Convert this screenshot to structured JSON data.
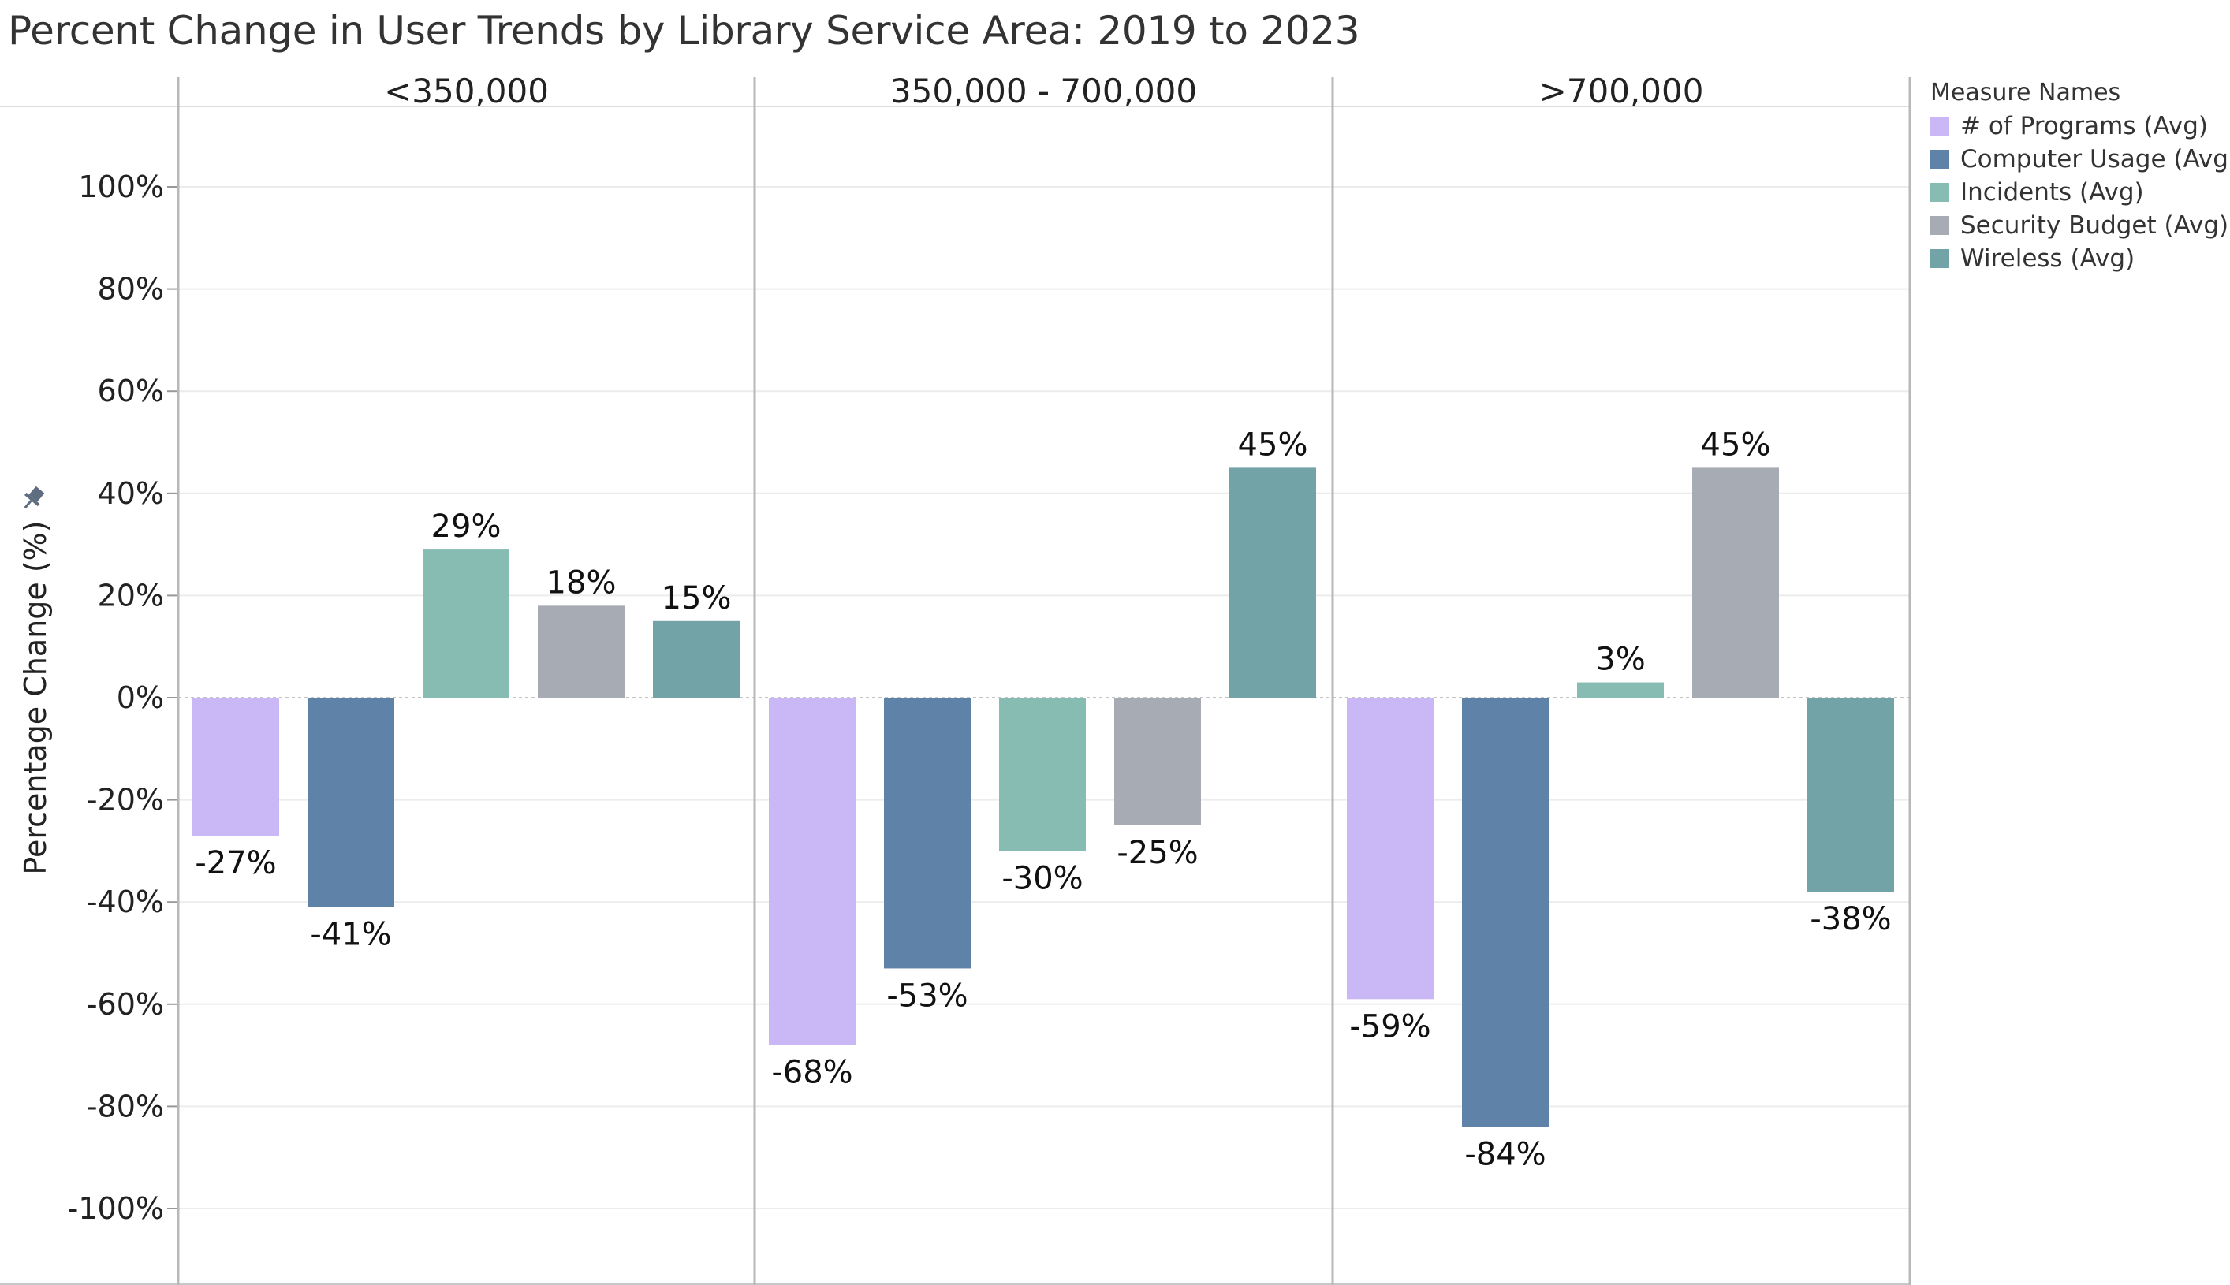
{
  "chart_data": {
    "type": "bar",
    "title": "Percent Change in User Trends by Library Service Area: 2019 to 2023",
    "ylabel": "Percentage Change (%)",
    "ylim": [
      -110,
      110
    ],
    "yticks": [
      100,
      80,
      60,
      40,
      20,
      0,
      -20,
      -40,
      -60,
      -80,
      -100
    ],
    "ytick_labels": [
      "100%",
      "80%",
      "60%",
      "40%",
      "20%",
      "0%",
      "-20%",
      "-40%",
      "-60%",
      "-80%",
      "-100%"
    ],
    "grid": true,
    "legend_position": "right",
    "legend_title": "Measure Names",
    "panels": [
      "<350,000",
      "350,000 - 700,000",
      ">700,000"
    ],
    "series": [
      {
        "name": "# of Programs (Avg)",
        "color": "#c9b8f5",
        "values": [
          -27,
          -68,
          -59
        ],
        "labels": [
          "-27%",
          "-68%",
          "-59%"
        ]
      },
      {
        "name": "Computer Usage (Avg)",
        "color": "#5f82a8",
        "values": [
          -41,
          -53,
          -84
        ],
        "labels": [
          "-41%",
          "-53%",
          "-84%"
        ]
      },
      {
        "name": "Incidents (Avg)",
        "color": "#87bcb2",
        "values": [
          29,
          -30,
          3
        ],
        "labels": [
          "29%",
          "-30%",
          "3%"
        ]
      },
      {
        "name": "Security Budget (Avg)",
        "color": "#a6abb4",
        "values": [
          18,
          -25,
          45
        ],
        "labels": [
          "18%",
          "-25%",
          "45%"
        ]
      },
      {
        "name": "Wireless (Avg)",
        "color": "#72a3a7",
        "values": [
          15,
          45,
          -38
        ],
        "labels": [
          "15%",
          "45%",
          "-38%"
        ]
      }
    ]
  },
  "icons": {
    "axis_pin": "pin-icon"
  }
}
